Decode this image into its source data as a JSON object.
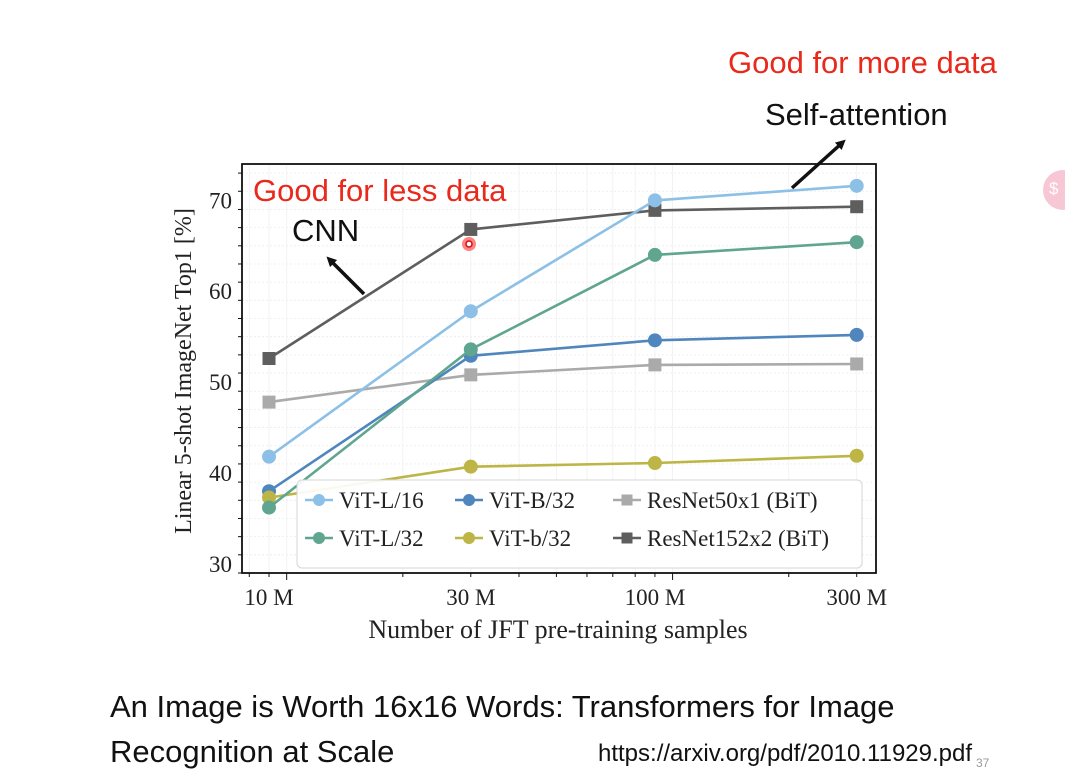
{
  "annotations": {
    "good_more": "Good for more data",
    "self_attention": "Self-attention",
    "good_less": "Good for less data",
    "cnn": "CNN"
  },
  "paper": {
    "title": "An Image is Worth 16x16 Words: Transformers for Image Recognition at Scale",
    "url": "https://arxiv.org/pdf/2010.11929.pdf",
    "page_number": "37"
  },
  "side_bubble_glyph": "$",
  "colors": {
    "annotation_red": "#e8291b",
    "vit_l16": "#8cc0e6",
    "vit_b32": "#4f86bd",
    "resnet50": "#aaaaaa",
    "vit_l32": "#5fa58f",
    "vit_b32_small": "#bdb545",
    "resnet152": "#5e5e5e"
  },
  "chart_data": {
    "type": "line",
    "title": "",
    "xlabel": "Number of JFT pre-training samples",
    "ylabel": "Linear 5-shot ImageNet Top1 [%]",
    "x_scale": "log",
    "categories": [
      "10 M",
      "30 M",
      "100 M",
      "300 M"
    ],
    "x": [
      9,
      30,
      90,
      300
    ],
    "ylim": [
      29,
      74
    ],
    "yticks": [
      30,
      40,
      50,
      60,
      70
    ],
    "grid": true,
    "legend_position": "bottom-center",
    "series": [
      {
        "name": "ViT-L/16",
        "color": "#8cc0e6",
        "marker": "circle",
        "values": [
          41.8,
          57.8,
          70.0,
          71.6
        ]
      },
      {
        "name": "ViT-B/32",
        "color": "#4f86bd",
        "marker": "circle",
        "values": [
          38.0,
          52.9,
          54.6,
          55.2
        ]
      },
      {
        "name": "ResNet50x1 (BiT)",
        "color": "#aaaaaa",
        "marker": "square",
        "values": [
          47.8,
          50.8,
          51.9,
          52.0
        ]
      },
      {
        "name": "ViT-L/32",
        "color": "#5fa58f",
        "marker": "circle",
        "values": [
          36.2,
          53.6,
          64.0,
          65.4
        ]
      },
      {
        "name": "ViT-b/32",
        "color": "#bdb545",
        "marker": "circle",
        "values": [
          37.3,
          40.7,
          41.1,
          41.9
        ]
      },
      {
        "name": "ResNet152x2 (BiT)",
        "color": "#5e5e5e",
        "marker": "square",
        "values": [
          52.6,
          66.8,
          68.9,
          69.3
        ]
      }
    ]
  }
}
